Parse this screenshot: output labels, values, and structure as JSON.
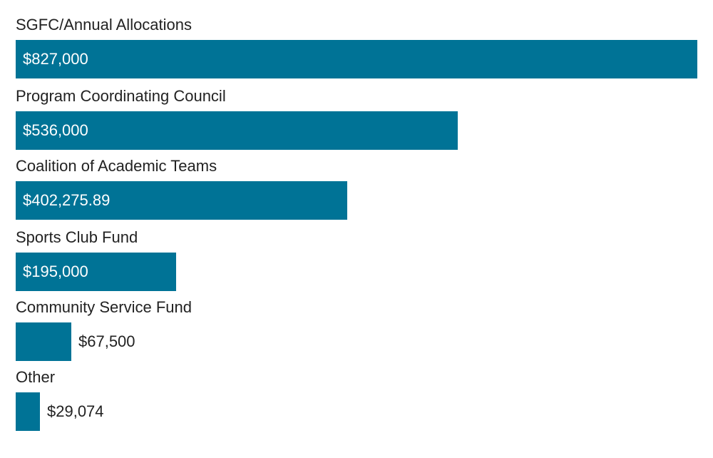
{
  "chart_data": {
    "type": "bar",
    "orientation": "horizontal",
    "title": "",
    "xlabel": "",
    "ylabel": "",
    "grid": false,
    "legend": null,
    "bar_color": "#007396",
    "categories": [
      "SGFC/Annual Allocations",
      "Program Coordinating Council",
      "Coalition of Academic Teams",
      "Sports Club Fund",
      "Community Service Fund",
      "Other"
    ],
    "values": [
      827000,
      536000,
      402275.89,
      195000,
      67500,
      29074
    ],
    "value_labels": [
      "$827,000",
      "$536,000",
      "$402,275.89",
      "$195,000",
      "$67,500",
      "$29,074"
    ],
    "xlim": [
      0,
      827000
    ]
  }
}
